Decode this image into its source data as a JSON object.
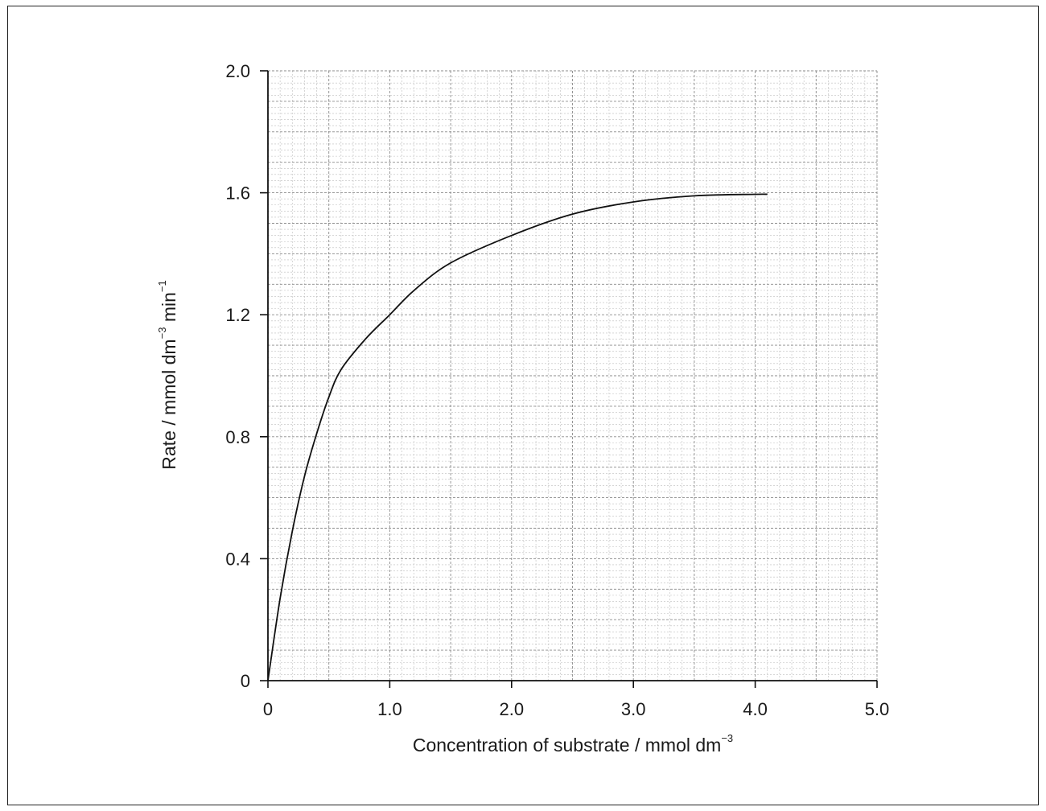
{
  "chart_data": {
    "type": "line",
    "title": "",
    "xlabel": "Concentration of substrate / mmol dm",
    "xlabel_sup": "−3",
    "ylabel_main": "Rate / mmol dm",
    "ylabel_sup1": "−3",
    "ylabel_mid": " min",
    "ylabel_sup2": "−1",
    "xlim": [
      0,
      5.0
    ],
    "ylim": [
      0,
      2.0
    ],
    "x_ticks": [
      "0",
      "1.0",
      "2.0",
      "3.0",
      "4.0",
      "5.0"
    ],
    "y_ticks": [
      "0",
      "0.4",
      "0.8",
      "1.2",
      "1.6",
      "2.0"
    ],
    "grid": true,
    "series": [
      {
        "x": [
          0,
          0.1,
          0.2,
          0.3,
          0.4,
          0.5,
          0.6,
          0.8,
          1.0,
          1.2,
          1.5,
          2.0,
          2.5,
          3.0,
          3.5,
          4.0,
          4.1
        ],
        "y": [
          0,
          0.27,
          0.49,
          0.67,
          0.81,
          0.93,
          1.02,
          1.12,
          1.2,
          1.28,
          1.37,
          1.46,
          1.53,
          1.57,
          1.59,
          1.595,
          1.595
        ]
      }
    ]
  }
}
